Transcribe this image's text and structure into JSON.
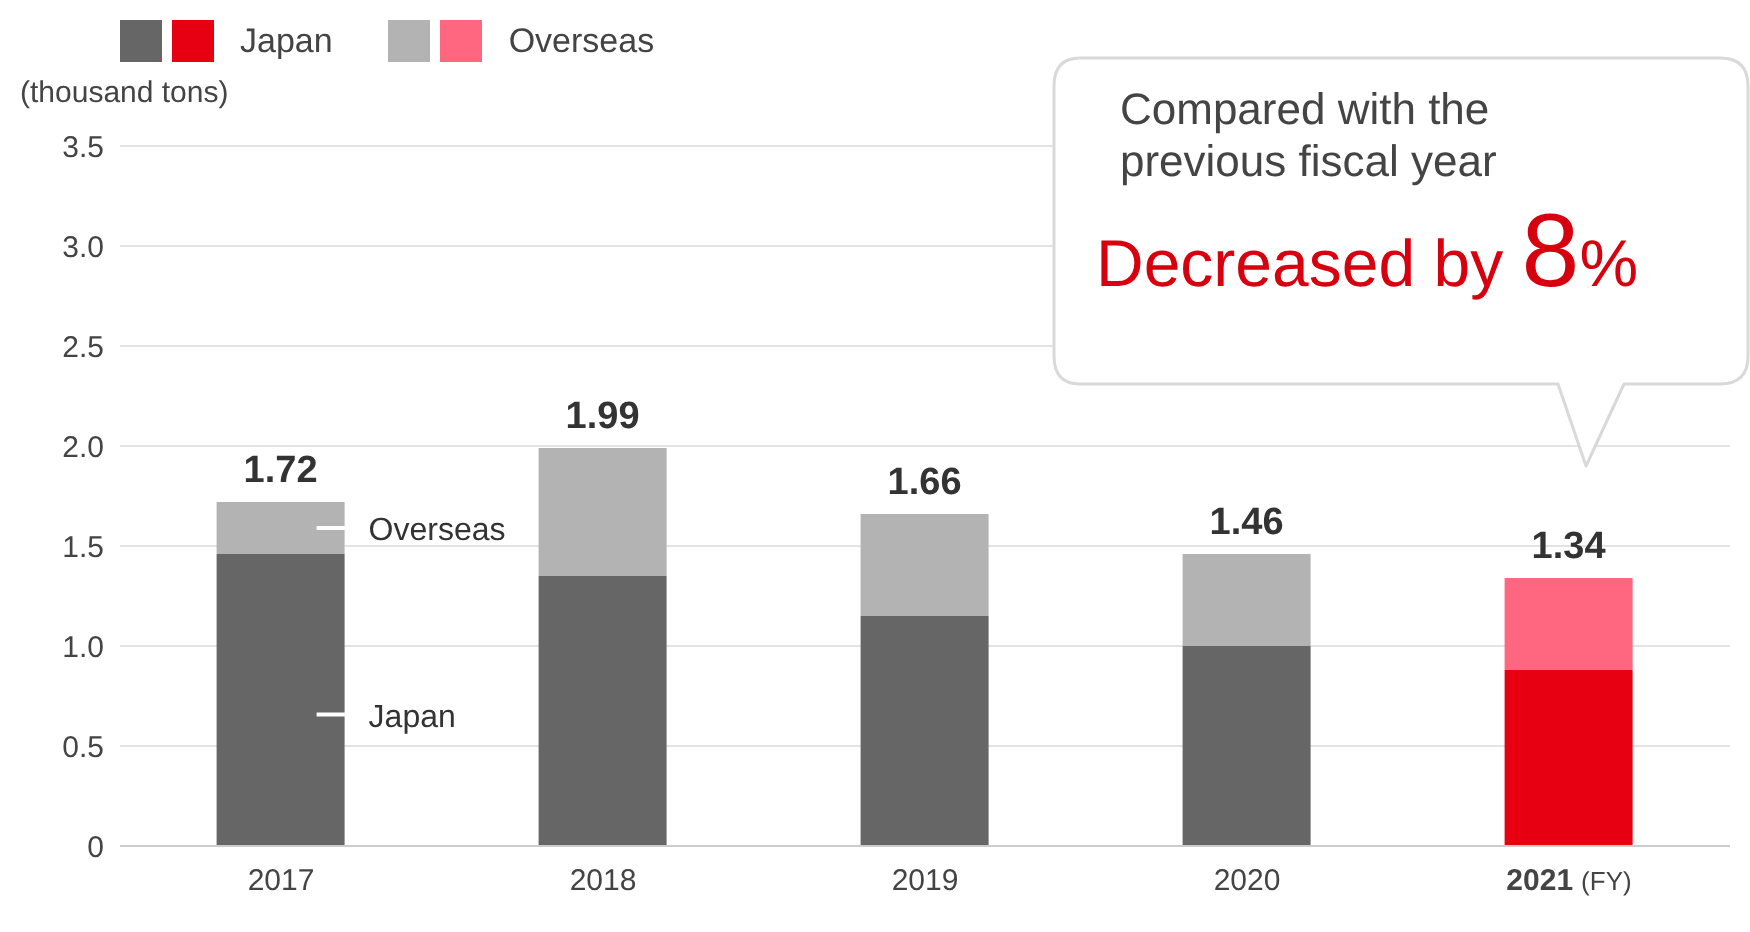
{
  "chart_data": {
    "type": "bar",
    "stacked": true,
    "ylabel": "(thousand tons)",
    "xlabel": "(FY)",
    "categories": [
      "2017",
      "2018",
      "2019",
      "2020",
      "2021"
    ],
    "series": [
      {
        "name": "Japan",
        "colors": [
          "#666666",
          "#666666",
          "#666666",
          "#666666",
          "#e60012"
        ],
        "values": [
          1.46,
          1.35,
          1.15,
          1.0,
          0.88
        ]
      },
      {
        "name": "Overseas",
        "colors": [
          "#b3b3b3",
          "#b3b3b3",
          "#b3b3b3",
          "#b3b3b3",
          "#ff6680"
        ],
        "values": [
          0.26,
          0.64,
          0.51,
          0.46,
          0.46
        ]
      }
    ],
    "totals": [
      "1.72",
      "1.99",
      "1.66",
      "1.46",
      "1.34"
    ],
    "ylim": [
      0,
      3.5
    ],
    "yticks": [
      0,
      0.5,
      {
        "value": 1,
        "label": "1.0"
      },
      1.5,
      {
        "value": 2,
        "label": "2.0"
      },
      2.5,
      {
        "value": 3,
        "label": "3.0"
      },
      3.5
    ],
    "grid": "y",
    "legend": "top left",
    "annotations": [
      "Compared with the previous fiscal year",
      "Decreased by 8%"
    ]
  }
}
